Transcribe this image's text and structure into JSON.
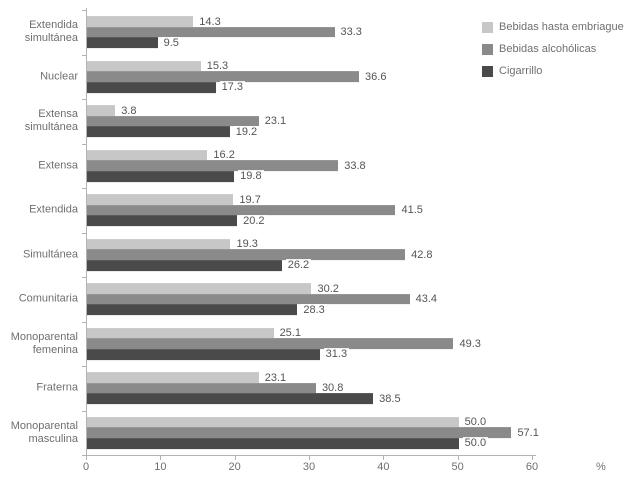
{
  "chart_data": {
    "type": "bar",
    "orientation": "horizontal",
    "title": "",
    "xlabel": "%",
    "ylabel": "",
    "xlim": [
      0,
      60
    ],
    "xticks": [
      0,
      10,
      20,
      30,
      40,
      50,
      60
    ],
    "grid": false,
    "legend_position": "top-right",
    "value_labels": true,
    "value_decimals": 1,
    "categories": [
      "Extendida simultánea",
      "Nuclear",
      "Extensa simultánea",
      "Extensa",
      "Extendida",
      "Simultánea",
      "Comunitaria",
      "Monoparental femenina",
      "Fraterna",
      "Monoparental masculina"
    ],
    "series": [
      {
        "name": "Bebidas hasta embriaguez",
        "color": "#c7c7c7",
        "values": [
          14.3,
          15.3,
          3.8,
          16.2,
          19.7,
          19.3,
          30.2,
          25.1,
          23.1,
          50.0
        ]
      },
      {
        "name": "Bebidas alcohólicas",
        "color": "#8a8a8a",
        "values": [
          33.3,
          36.6,
          23.1,
          33.8,
          41.5,
          42.8,
          43.4,
          49.3,
          30.8,
          57.1
        ]
      },
      {
        "name": "Cigarrillo",
        "color": "#4a4a4a",
        "values": [
          9.5,
          17.3,
          19.2,
          19.8,
          20.2,
          26.2,
          28.3,
          31.3,
          38.5,
          50.0
        ]
      }
    ],
    "colors": {
      "axis": "#b3b3b3",
      "category_text": "#6f6f6f",
      "value_text": "#545454",
      "background": "#ffffff"
    }
  }
}
